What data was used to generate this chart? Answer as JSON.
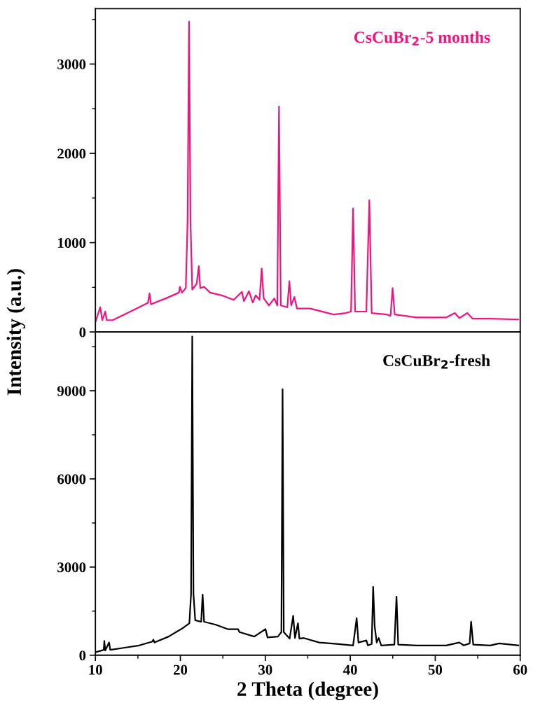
{
  "chart_data": [
    {
      "type": "line",
      "xlim": [
        10,
        60
      ],
      "xticks": [
        10,
        20,
        30,
        40,
        50,
        60
      ],
      "ylim": [
        0,
        3620
      ],
      "yticks": [
        0,
        1000,
        2000,
        3000
      ],
      "tick_labels": "y",
      "legend": false,
      "grid": false,
      "series": [
        {
          "name": "CsCuBr$_{2}$-5 months",
          "color": "#f0147f",
          "x": [
            10.01,
            10.57,
            10.81,
            11.16,
            11.33,
            12.03,
            14.11,
            16.19,
            16.37,
            16.54,
            18.28,
            19.84,
            19.94,
            20.19,
            20.64,
            20.85,
            21.02,
            21.19,
            21.4,
            21.92,
            22.17,
            22.34,
            22.79,
            23.49,
            24.88,
            26.27,
            27.24,
            27.48,
            28.07,
            28.52,
            28.87,
            29.32,
            29.57,
            29.81,
            30.43,
            31.06,
            31.41,
            31.61,
            31.82,
            32.59,
            32.83,
            33.04,
            33.42,
            33.73,
            35.3,
            37.38,
            38.07,
            39.46,
            40.09,
            40.33,
            40.57,
            41.89,
            42.24,
            42.52,
            44.32,
            44.74,
            44.98,
            45.23,
            47.8,
            51.27,
            52.31,
            52.83,
            53.77,
            54.4,
            56.48,
            59.78
          ],
          "values": [
            114,
            277,
            132,
            228,
            132,
            132,
            228,
            326,
            432,
            310,
            376,
            441,
            506,
            441,
            491,
            1247,
            3476,
            1247,
            475,
            540,
            736,
            491,
            506,
            441,
            410,
            360,
            450,
            345,
            456,
            330,
            410,
            360,
            711,
            376,
            297,
            376,
            297,
            2525,
            297,
            277,
            568,
            297,
            392,
            262,
            262,
            212,
            195,
            212,
            228,
            1383,
            228,
            228,
            1475,
            212,
            195,
            180,
            491,
            195,
            162,
            162,
            212,
            155,
            212,
            148,
            148,
            140
          ]
        }
      ]
    },
    {
      "type": "line",
      "xlim": [
        10,
        60
      ],
      "xticks": [
        10,
        20,
        30,
        40,
        50,
        60
      ],
      "ylim": [
        0,
        11000
      ],
      "yticks": [
        0,
        3000,
        6000,
        9000
      ],
      "xlabel": "2 Theta (degree)",
      "ylabel": "Intensity (a.u.)",
      "legend": false,
      "grid": false,
      "series": [
        {
          "name": "CsCuBr$_{2}$-fresh",
          "color": "#000000",
          "x": [
            10.01,
            10.98,
            11.05,
            11.16,
            11.61,
            11.75,
            13.59,
            15.15,
            16.71,
            16.82,
            16.96,
            18.62,
            19.49,
            20.36,
            21.06,
            21.26,
            21.4,
            21.54,
            21.75,
            22.45,
            22.62,
            22.79,
            24.18,
            25.57,
            26.79,
            26.96,
            28.7,
            30.02,
            30.26,
            31.48,
            31.89,
            32.03,
            32.17,
            32.86,
            33.28,
            33.49,
            33.84,
            34.01,
            34.53,
            36.34,
            38.42,
            40.33,
            40.75,
            40.96,
            41.89,
            42.07,
            42.52,
            42.69,
            42.87,
            43.11,
            43.35,
            43.64,
            45.19,
            45.44,
            45.64,
            47.8,
            51.27,
            52.83,
            53.36,
            54.05,
            54.22,
            54.47,
            56.48,
            57.52,
            59.78
          ],
          "values": [
            101,
            181,
            484,
            161,
            433,
            181,
            262,
            333,
            464,
            534,
            433,
            635,
            786,
            937,
            1089,
            2097,
            10846,
            2097,
            1189,
            1139,
            2066,
            1139,
            1038,
            887,
            887,
            786,
            635,
            887,
            605,
            635,
            786,
            9052,
            786,
            564,
            1341,
            585,
            1089,
            564,
            585,
            433,
            383,
            333,
            1260,
            433,
            504,
            333,
            383,
            2328,
            988,
            433,
            585,
            333,
            363,
            1996,
            363,
            333,
            333,
            433,
            333,
            403,
            1139,
            363,
            333,
            403,
            333
          ]
        }
      ]
    }
  ]
}
